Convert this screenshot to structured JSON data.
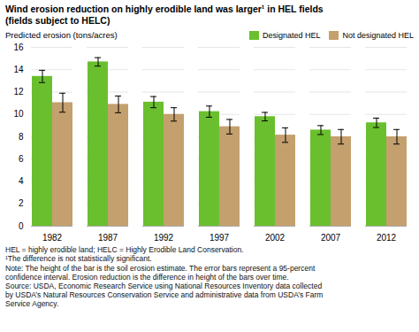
{
  "chart_data": {
    "type": "bar",
    "title": "Wind erosion reduction on highly erodible land was larger¹ in HEL fields",
    "subtitle": "(fields subject to HELC)",
    "ylabel": "Predicted erosion (tons/acres)",
    "categories": [
      "1982",
      "1987",
      "1992",
      "1997",
      "2002",
      "2007",
      "2012"
    ],
    "series": [
      {
        "name": "Designated HEL",
        "color": "#6abf2e",
        "values": [
          13.4,
          14.7,
          11.1,
          10.25,
          9.8,
          8.6,
          9.25
        ],
        "errors": [
          0.55,
          0.38,
          0.5,
          0.5,
          0.38,
          0.4,
          0.42
        ]
      },
      {
        "name": "Not designated HEL",
        "color": "#c4a06e",
        "values": [
          11.05,
          10.9,
          10.0,
          8.9,
          8.15,
          8.0,
          8.0
        ],
        "errors": [
          0.85,
          0.75,
          0.6,
          0.65,
          0.65,
          0.65,
          0.65
        ]
      }
    ],
    "ylim": [
      0,
      16
    ],
    "yticks": [
      0,
      2,
      4,
      6,
      8,
      10,
      12,
      14,
      16
    ],
    "grid": true,
    "legend": "upper right",
    "annotations": [
      "HEL = highly erodible land; HELC = Highly Erodible Land Conservation.",
      "¹The difference is not statistically significant.",
      "Note: The height of the bar is the soil erosion estimate. The error bars represent a 95-percent",
      "confidence interval. Erosion reduction is the difference in height of the bars over time.",
      "Source: USDA, Economic Research Service using National Resources Inventory data collected",
      "by USDA’s Natural Resources Conservation Service and administrative data from USDA’s Farm",
      "Service Agency."
    ]
  }
}
